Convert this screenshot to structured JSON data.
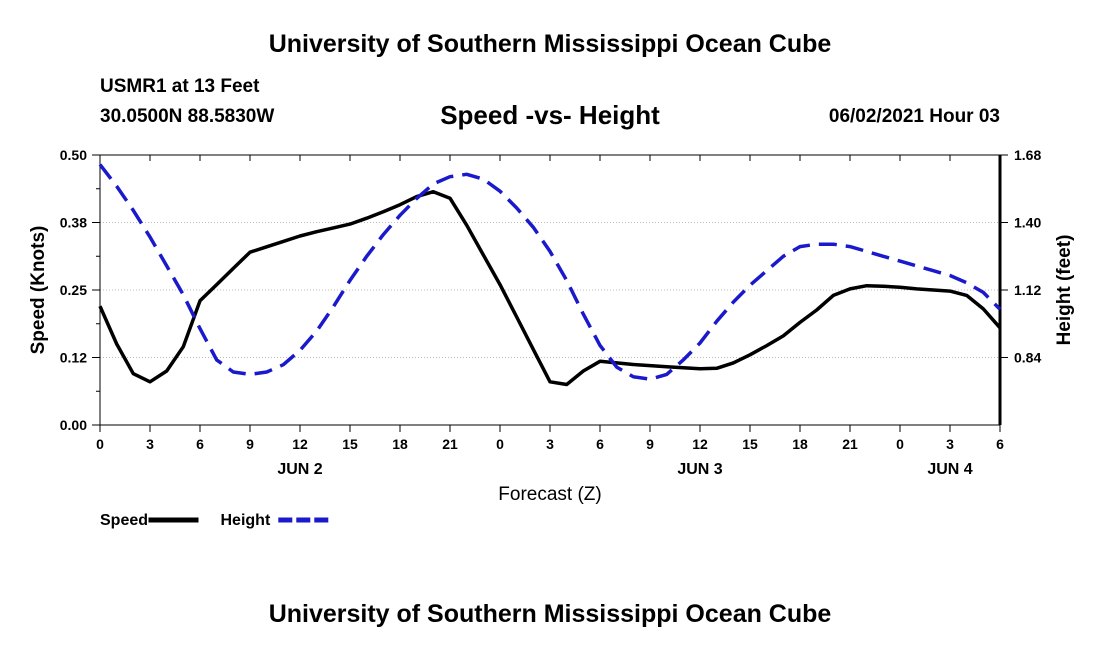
{
  "header": {
    "title": "University of Southern Mississippi Ocean Cube",
    "station": "USMR1 at 13 Feet",
    "coords": "30.0500N  88.5830W",
    "chart_title": "Speed -vs- Height",
    "run_time": "06/02/2021 Hour 03"
  },
  "footer": {
    "title": "University of Southern Mississippi Ocean Cube"
  },
  "chart_data": {
    "type": "line",
    "title": "Speed -vs- Height",
    "xlabel": "Forecast (Z)",
    "ylabel": "Speed (Knots)",
    "y2label": "Height (feet)",
    "xlim": [
      0,
      54
    ],
    "ylim": [
      0,
      0.5
    ],
    "y2lim": [
      0.56,
      1.68
    ],
    "x_ticks": [
      0,
      3,
      6,
      9,
      12,
      15,
      18,
      21,
      24,
      27,
      30,
      33,
      36,
      39,
      42,
      45,
      48,
      51,
      54
    ],
    "x_tick_labels": [
      "0",
      "3",
      "6",
      "9",
      "12",
      "15",
      "18",
      "21",
      "0",
      "3",
      "6",
      "9",
      "12",
      "15",
      "18",
      "21",
      "0",
      "3",
      "6"
    ],
    "date_labels": [
      {
        "x": 12,
        "label": "JUN 2"
      },
      {
        "x": 36,
        "label": "JUN 3"
      },
      {
        "x": 51,
        "label": "JUN 4"
      }
    ],
    "y_ticks": [
      0,
      0.125,
      0.25,
      0.375,
      0.5
    ],
    "y_tick_labels": [
      "0.00",
      "0.12",
      "0.25",
      "0.38",
      "0.50"
    ],
    "y2_ticks": [
      0.84,
      1.12,
      1.4,
      1.68
    ],
    "y2_tick_labels": [
      "0.84",
      "1.12",
      "1.40",
      "1.68"
    ],
    "legend": {
      "position": "bottom-left"
    },
    "series": [
      {
        "name": "Speed",
        "axis": "left",
        "color": "#000000",
        "style": "solid",
        "x": [
          0,
          1,
          2,
          3,
          4,
          5,
          6,
          7,
          8,
          9,
          10,
          11,
          12,
          13,
          14,
          15,
          16,
          17,
          18,
          19,
          20,
          21,
          22,
          23,
          24,
          25,
          26,
          27,
          28,
          29,
          30,
          31,
          32,
          33,
          34,
          35,
          36,
          37,
          38,
          39,
          40,
          41,
          42,
          43,
          44,
          45,
          46,
          47,
          48,
          49,
          50,
          51,
          52,
          53,
          54
        ],
        "values": [
          0.22,
          0.15,
          0.095,
          0.08,
          0.1,
          0.145,
          0.23,
          0.26,
          0.29,
          0.32,
          0.33,
          0.34,
          0.35,
          0.358,
          0.365,
          0.372,
          0.383,
          0.395,
          0.408,
          0.423,
          0.432,
          0.42,
          0.37,
          0.315,
          0.26,
          0.2,
          0.14,
          0.08,
          0.075,
          0.1,
          0.118,
          0.115,
          0.112,
          0.11,
          0.108,
          0.106,
          0.104,
          0.105,
          0.115,
          0.13,
          0.147,
          0.165,
          0.19,
          0.213,
          0.24,
          0.252,
          0.258,
          0.257,
          0.255,
          0.252,
          0.25,
          0.248,
          0.24,
          0.215,
          0.18
        ]
      },
      {
        "name": "Height",
        "axis": "right",
        "color": "#1a1acc",
        "style": "dashed",
        "x": [
          0,
          1,
          2,
          3,
          4,
          5,
          6,
          7,
          8,
          9,
          10,
          11,
          12,
          13,
          14,
          15,
          16,
          17,
          18,
          19,
          20,
          21,
          22,
          23,
          24,
          25,
          26,
          27,
          28,
          29,
          30,
          31,
          32,
          33,
          34,
          35,
          36,
          37,
          38,
          39,
          40,
          41,
          42,
          43,
          44,
          45,
          46,
          47,
          48,
          49,
          50,
          51,
          52,
          53,
          54
        ],
        "values": [
          1.64,
          1.55,
          1.45,
          1.34,
          1.22,
          1.1,
          0.96,
          0.83,
          0.78,
          0.77,
          0.78,
          0.81,
          0.87,
          0.95,
          1.05,
          1.16,
          1.26,
          1.35,
          1.43,
          1.5,
          1.56,
          1.59,
          1.6,
          1.58,
          1.53,
          1.46,
          1.38,
          1.28,
          1.16,
          1.02,
          0.89,
          0.8,
          0.76,
          0.75,
          0.77,
          0.83,
          0.9,
          0.99,
          1.07,
          1.14,
          1.2,
          1.26,
          1.3,
          1.31,
          1.31,
          1.3,
          1.28,
          1.26,
          1.24,
          1.22,
          1.2,
          1.18,
          1.15,
          1.11,
          1.04
        ]
      }
    ]
  }
}
